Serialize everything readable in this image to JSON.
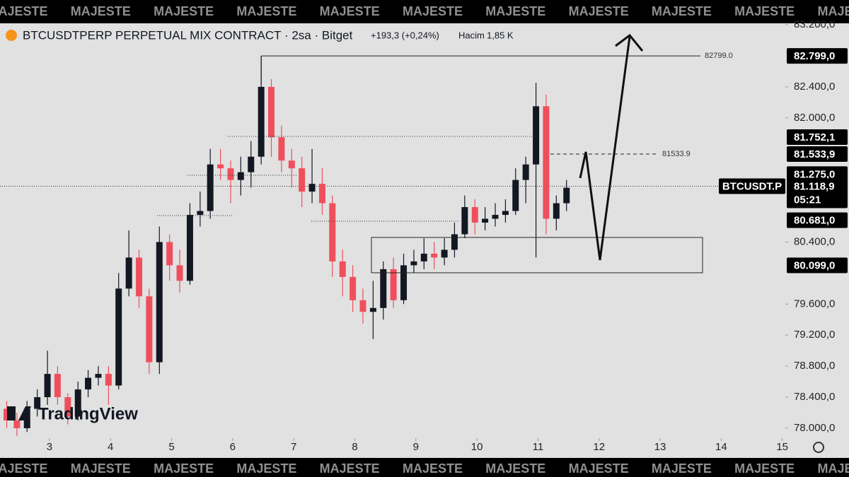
{
  "chart_data": {
    "type": "candlestick",
    "title": "BTCUSDTPERP PERPETUAL MIX CONTRACT · 2sa · Bitget",
    "change": "+193,3 (+0,24%)",
    "volume_label": "Hacim",
    "volume": "1,85 K",
    "watermark": "MAJESTE",
    "logo": "TradingView",
    "up_color": "#131722",
    "down_color": "#ef4f5c",
    "xlim": [
      2.19,
      15.05
    ],
    "xticks": [
      3,
      4,
      5,
      6,
      7,
      8,
      9,
      10,
      11,
      12,
      13,
      14,
      15
    ],
    "ylim": [
      77617,
      83219
    ],
    "yticks": [
      {
        "value": 78000,
        "label": "78.000,0"
      },
      {
        "value": 78400,
        "label": "78.400,0"
      },
      {
        "value": 78800,
        "label": "78.800,0"
      },
      {
        "value": 79200,
        "label": "79.200,0"
      },
      {
        "value": 79600,
        "label": "79.600,0"
      },
      {
        "value": 80400,
        "label": "80.400,0"
      },
      {
        "value": 82000,
        "label": "82.000,0"
      },
      {
        "value": 82400,
        "label": "82.400,0"
      },
      {
        "value": 83200,
        "label": "83.200,0"
      }
    ],
    "x": [
      2.3,
      2.467,
      2.633,
      2.8,
      2.967,
      3.133,
      3.3,
      3.467,
      3.633,
      3.8,
      3.967,
      4.133,
      4.3,
      4.467,
      4.633,
      4.8,
      4.967,
      5.133,
      5.3,
      5.467,
      5.633,
      5.8,
      5.967,
      6.133,
      6.3,
      6.467,
      6.633,
      6.8,
      6.967,
      7.133,
      7.3,
      7.467,
      7.633,
      7.8,
      7.967,
      8.133,
      8.3,
      8.467,
      8.633,
      8.8,
      8.967,
      9.133,
      9.3,
      9.467,
      9.633,
      9.8,
      9.967,
      10.133,
      10.3,
      10.467,
      10.633,
      10.8,
      10.967,
      11.133,
      11.3,
      11.467
    ],
    "open": [
      78250,
      78100,
      78000,
      78250,
      78400,
      78700,
      78400,
      78150,
      78500,
      78650,
      78700,
      78550,
      79800,
      80200,
      79700,
      78850,
      80400,
      80100,
      79900,
      80750,
      80800,
      81400,
      81350,
      81200,
      81300,
      81500,
      82400,
      81750,
      81450,
      81350,
      81050,
      81150,
      80900,
      80150,
      79950,
      79650,
      79500,
      79550,
      80050,
      79650,
      80100,
      80150,
      80250,
      80200,
      80300,
      80500,
      80850,
      80650,
      80700,
      80750,
      80800,
      81200,
      81400,
      82150,
      80700,
      80900
    ],
    "high": [
      78350,
      78200,
      78350,
      78500,
      79000,
      78800,
      78450,
      78600,
      78750,
      78800,
      78800,
      80000,
      80550,
      80300,
      79800,
      80600,
      80500,
      80300,
      80900,
      81050,
      81600,
      81600,
      81450,
      81500,
      81700,
      82799,
      82500,
      81900,
      81600,
      81500,
      81600,
      81350,
      81000,
      80300,
      80100,
      79800,
      79900,
      80150,
      80200,
      80250,
      80300,
      80450,
      80400,
      80450,
      80650,
      81000,
      80950,
      80850,
      80900,
      80950,
      81350,
      81500,
      82450,
      82300,
      81000,
      81200
    ],
    "low": [
      78000,
      77900,
      77950,
      78150,
      78300,
      78300,
      78050,
      78100,
      78400,
      78550,
      78300,
      78500,
      79700,
      79550,
      78700,
      78700,
      79900,
      79750,
      79850,
      80600,
      80700,
      81200,
      80900,
      81000,
      81100,
      81400,
      81500,
      81300,
      81100,
      80850,
      80900,
      80750,
      79950,
      79700,
      79500,
      79350,
      79150,
      79400,
      79550,
      79600,
      80000,
      80050,
      80050,
      80100,
      80200,
      80450,
      80500,
      80550,
      80600,
      80650,
      80750,
      80900,
      80200,
      80500,
      80550,
      80800
    ],
    "close": [
      78100,
      78000,
      78250,
      78400,
      78700,
      78400,
      78150,
      78500,
      78650,
      78700,
      78550,
      79800,
      80200,
      79700,
      78850,
      80400,
      80100,
      79900,
      80750,
      80800,
      81400,
      81350,
      81200,
      81300,
      81500,
      82400,
      81750,
      81450,
      81350,
      81050,
      81150,
      80900,
      80150,
      79950,
      79650,
      79500,
      79550,
      80050,
      79650,
      80100,
      80150,
      80250,
      80200,
      80300,
      80500,
      80850,
      80650,
      80700,
      80750,
      80800,
      81200,
      81400,
      82150,
      80700,
      80900,
      81100
    ],
    "current": {
      "symbol": "BTCUSDT.P",
      "value": 81118.9,
      "label": "81.118,9",
      "countdown": "05:21"
    },
    "price_tags": [
      {
        "value": 82799,
        "label": "82.799,0"
      },
      {
        "value": 81752.1,
        "label": "81.752,1"
      },
      {
        "value": 81533.9,
        "label": "81.533,9"
      },
      {
        "value": 81275,
        "label": "81.275,0"
      },
      {
        "value": 80681,
        "label": "80.681,0"
      },
      {
        "value": 80099,
        "label": "80.099,0"
      }
    ],
    "annotations": [
      {
        "value": 82799,
        "label": "82799.0"
      },
      {
        "value": 81533.9,
        "label": "81533.9"
      }
    ]
  }
}
